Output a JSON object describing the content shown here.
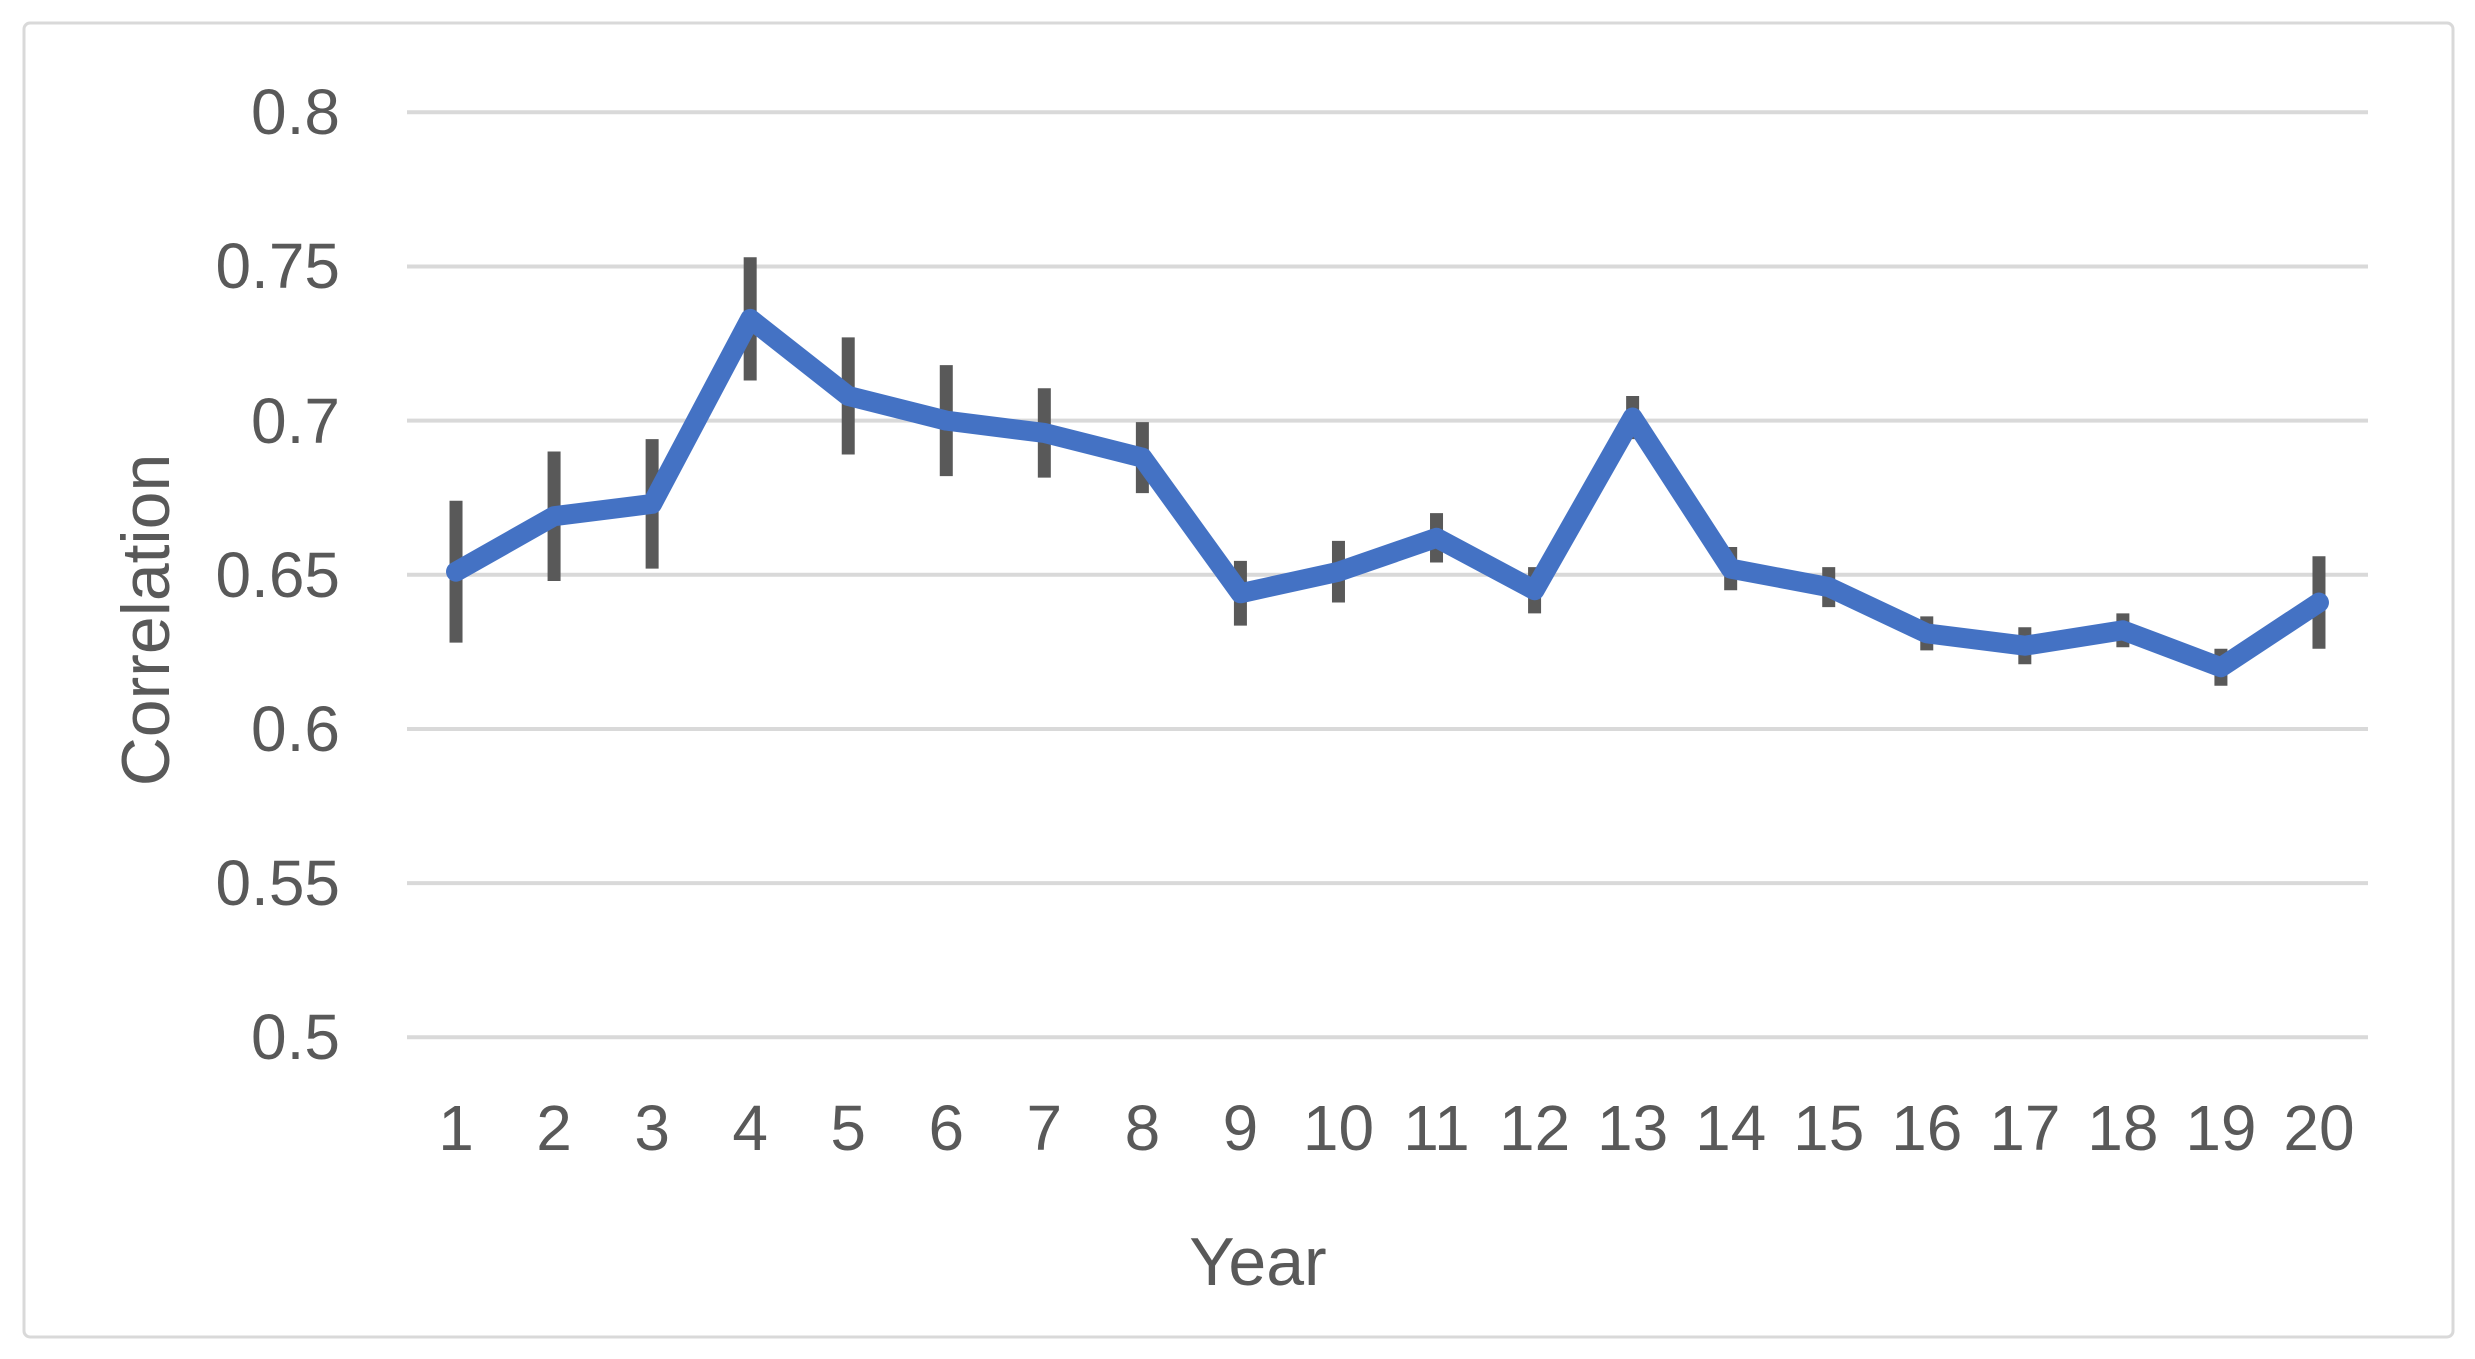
{
  "chart_data": {
    "type": "line",
    "xlabel": "Year",
    "ylabel": "Correlation",
    "categories": [
      "1",
      "2",
      "3",
      "4",
      "5",
      "6",
      "7",
      "8",
      "9",
      "10",
      "11",
      "12",
      "13",
      "14",
      "15",
      "16",
      "17",
      "18",
      "19",
      "20"
    ],
    "series": [
      {
        "name": "Correlation",
        "values": [
          0.651,
          0.669,
          0.673,
          0.733,
          0.708,
          0.7,
          0.696,
          0.688,
          0.644,
          0.651,
          0.662,
          0.645,
          0.701,
          0.652,
          0.646,
          0.631,
          0.627,
          0.632,
          0.62,
          0.641
        ],
        "errors": [
          0.023,
          0.021,
          0.021,
          0.02,
          0.019,
          0.018,
          0.0145,
          0.0115,
          0.0105,
          0.01,
          0.008,
          0.0075,
          0.007,
          0.007,
          0.0065,
          0.0055,
          0.006,
          0.0055,
          0.006,
          0.015
        ]
      }
    ],
    "ylim": [
      0.5,
      0.8
    ],
    "yticks": [
      {
        "label": "0.8",
        "value": 0.8
      },
      {
        "label": "0.75",
        "value": 0.75
      },
      {
        "label": "0.7",
        "value": 0.7
      },
      {
        "label": "0.65",
        "value": 0.65
      },
      {
        "label": "0.6",
        "value": 0.6
      },
      {
        "label": "0.55",
        "value": 0.55
      },
      {
        "label": "0.5",
        "value": 0.5
      }
    ],
    "grid": "horizontal",
    "legend": "none",
    "colors": {
      "line": "#4472C4",
      "error_bar": "#595959",
      "gridline": "#D9D9D9",
      "border": "#D9D9D9",
      "tick_text": "#595959",
      "background": "#FFFFFF"
    }
  }
}
